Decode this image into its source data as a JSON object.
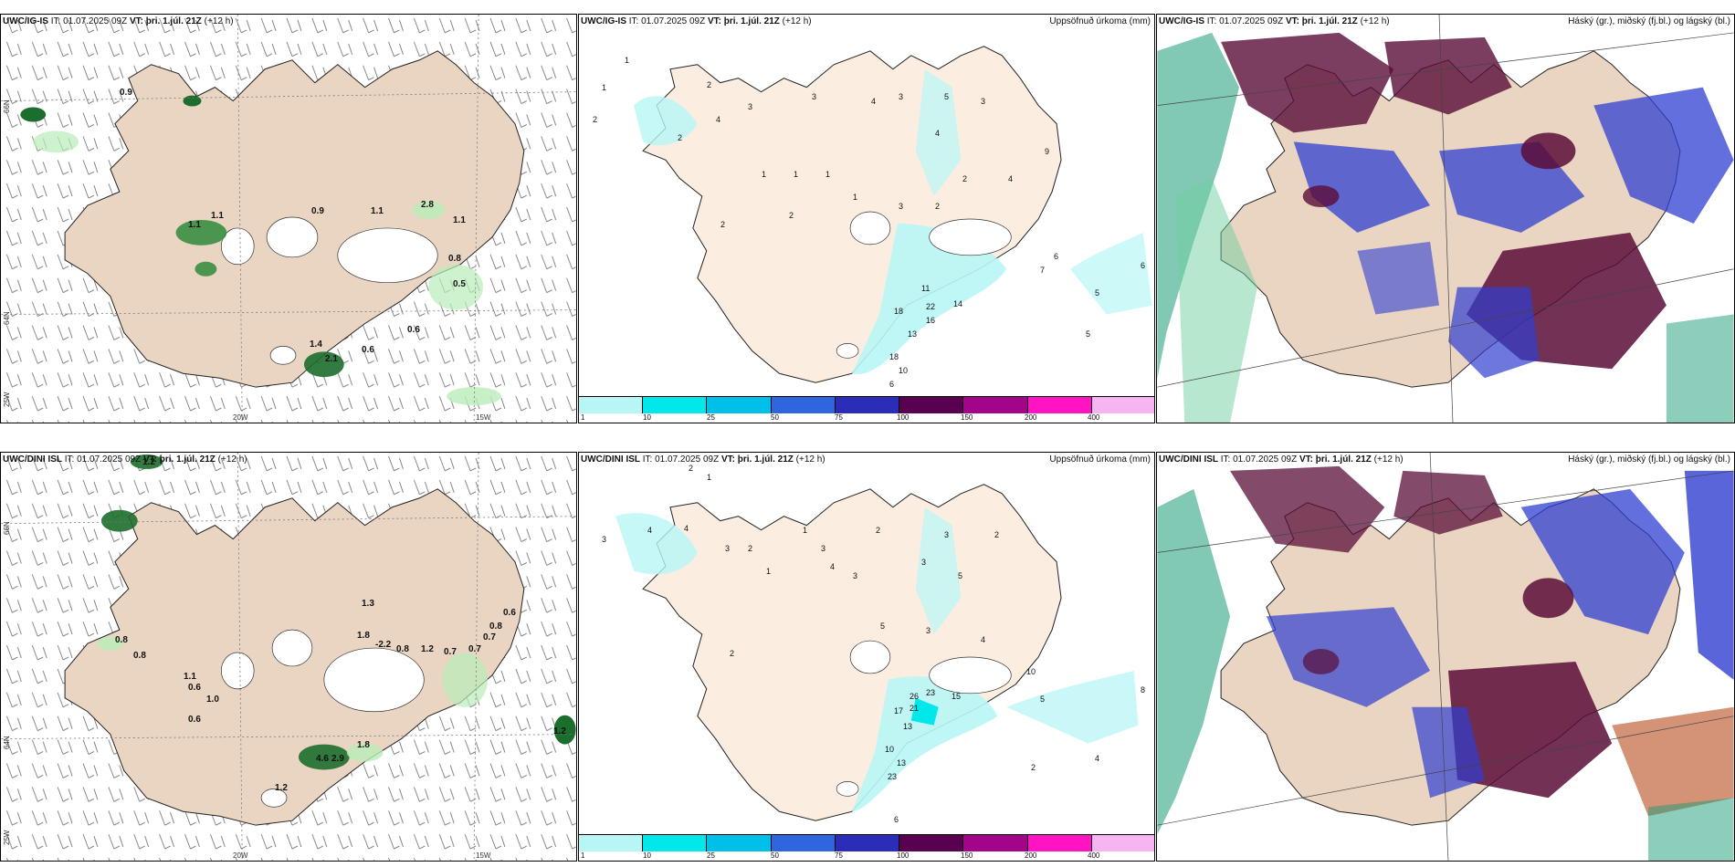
{
  "panels": {
    "r1c1": {
      "model": "UWC/IG-IS",
      "it": "IT: 01.07.2025 09Z",
      "vt": "VT: þri. 1.júl. 21Z",
      "lead": "(+12 h)",
      "right": ""
    },
    "r1c2": {
      "model": "UWC/IG-IS",
      "it": "IT: 01.07.2025 09Z",
      "vt": "VT: þri. 1.júl. 21Z",
      "lead": "(+12 h)",
      "right": "Uppsöfnuð úrkoma (mm)"
    },
    "r1c3": {
      "model": "UWC/IG-IS",
      "it": "IT: 01.07.2025 09Z",
      "vt": "VT: þri. 1.júl. 21Z",
      "lead": "(+12 h)",
      "right": "Háský (gr.), miðský (fj.bl.) og lágský (bl.)"
    },
    "r2c1": {
      "model": "UWC/DINI ISL",
      "it": "IT: 01.07.2025 09Z",
      "vt": "VT: þri. 1.júl. 21Z",
      "lead": "(+12 h)",
      "right": ""
    },
    "r2c2": {
      "model": "UWC/DINI ISL",
      "it": "IT: 01.07.2025 09Z",
      "vt": "VT: þri. 1.júl. 21Z",
      "lead": "(+12 h)",
      "right": "Uppsöfnuð úrkoma (mm)"
    },
    "r2c3": {
      "model": "UWC/DINI ISL",
      "it": "IT: 01.07.2025 09Z",
      "vt": "VT: þri. 1.júl. 21Z",
      "lead": "(+12 h)",
      "right": "Háský (gr.), miðský (fj.bl.) og lágský (bl.)"
    }
  },
  "axes": {
    "lon_20w": "20W",
    "lon_15w": "15W",
    "lon_25w": "25W",
    "lat_66n": "66N",
    "lat_64n": "64N"
  },
  "colorbar": {
    "ticks": [
      "1",
      "10",
      "25",
      "50",
      "75",
      "100",
      "150",
      "200",
      "400"
    ],
    "colors": [
      "#b8f6f6",
      "#00e8ea",
      "#00bfe8",
      "#2f66e0",
      "#2b2db8",
      "#5a0050",
      "#a2048a",
      "#ff14c4",
      "#f6b4f0"
    ]
  },
  "wind_labels_r1": [
    "0.9",
    "1.1",
    "1.1",
    "0.9",
    "1.1",
    "2.8",
    "1.1",
    "0.8",
    "0.5",
    "0.6",
    "1.4",
    "2.1",
    "0.6"
  ],
  "wind_labels_r2": [
    "1.2",
    "0.8",
    "0.8",
    "1.1",
    "0.6",
    "1.0",
    "0.6",
    "1.3",
    "1.8",
    "-2.2",
    "0.8",
    "1.2",
    "0.7",
    "0.7",
    "0.6",
    "0.8",
    "0.7",
    "4.6",
    "2.9",
    "1.8",
    "1.2",
    "1.2"
  ],
  "precip_labels_r1": [
    "1",
    "1",
    "2",
    "2",
    "3",
    "4",
    "2",
    "3",
    "4",
    "3",
    "5",
    "4",
    "3",
    "1",
    "1",
    "1",
    "1",
    "2",
    "2",
    "3",
    "2",
    "2",
    "4",
    "9",
    "6",
    "5",
    "5",
    "6",
    "7",
    "11",
    "22",
    "18",
    "16",
    "14",
    "13",
    "18",
    "10",
    "6"
  ],
  "precip_labels_r2": [
    "2",
    "1",
    "3",
    "4",
    "4",
    "3",
    "2",
    "1",
    "3",
    "2",
    "4",
    "3",
    "3",
    "5",
    "3",
    "2",
    "1",
    "2",
    "5",
    "3",
    "4",
    "10",
    "13",
    "26",
    "21",
    "23",
    "15",
    "17",
    "10",
    "23",
    "13",
    "6",
    "8",
    "5",
    "4",
    "2"
  ]
}
